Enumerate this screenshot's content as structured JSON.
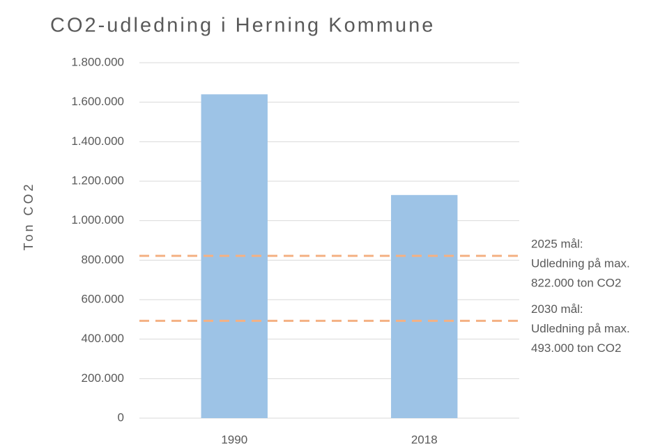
{
  "chart_data": {
    "type": "bar",
    "title": "CO2-udledning i Herning Kommune",
    "y_label": "Ton CO2",
    "categories": [
      "1990",
      "2018"
    ],
    "values": [
      1640000,
      1130000
    ],
    "color": "#9dc3e6",
    "ylim": [
      0,
      1800000
    ],
    "yticks": [
      0,
      {
        "value": 200000,
        "label": "200.000"
      },
      {
        "value": 400000,
        "label": "400.000"
      },
      {
        "value": 600000,
        "label": "600.000"
      },
      {
        "value": 800000,
        "label": "800.000"
      },
      {
        "value": 1000000,
        "label": "1.000.000"
      },
      {
        "value": 1200000,
        "label": "1.200.000"
      },
      {
        "value": 1400000,
        "label": "1.400.000"
      },
      {
        "value": 1600000,
        "label": "1.600.000"
      },
      {
        "value": 1800000,
        "label": "1.800.000"
      }
    ],
    "grid": true,
    "reference_lines": [
      {
        "value": 822000,
        "color": "#f4b183",
        "label": [
          "2025 mål:",
          "Udledning på max.",
          "822.000 ton CO2"
        ]
      },
      {
        "value": 493000,
        "color": "#f4b183",
        "label": [
          "2030 mål:",
          "Udledning på max.",
          "493.000 ton CO2"
        ]
      }
    ]
  }
}
